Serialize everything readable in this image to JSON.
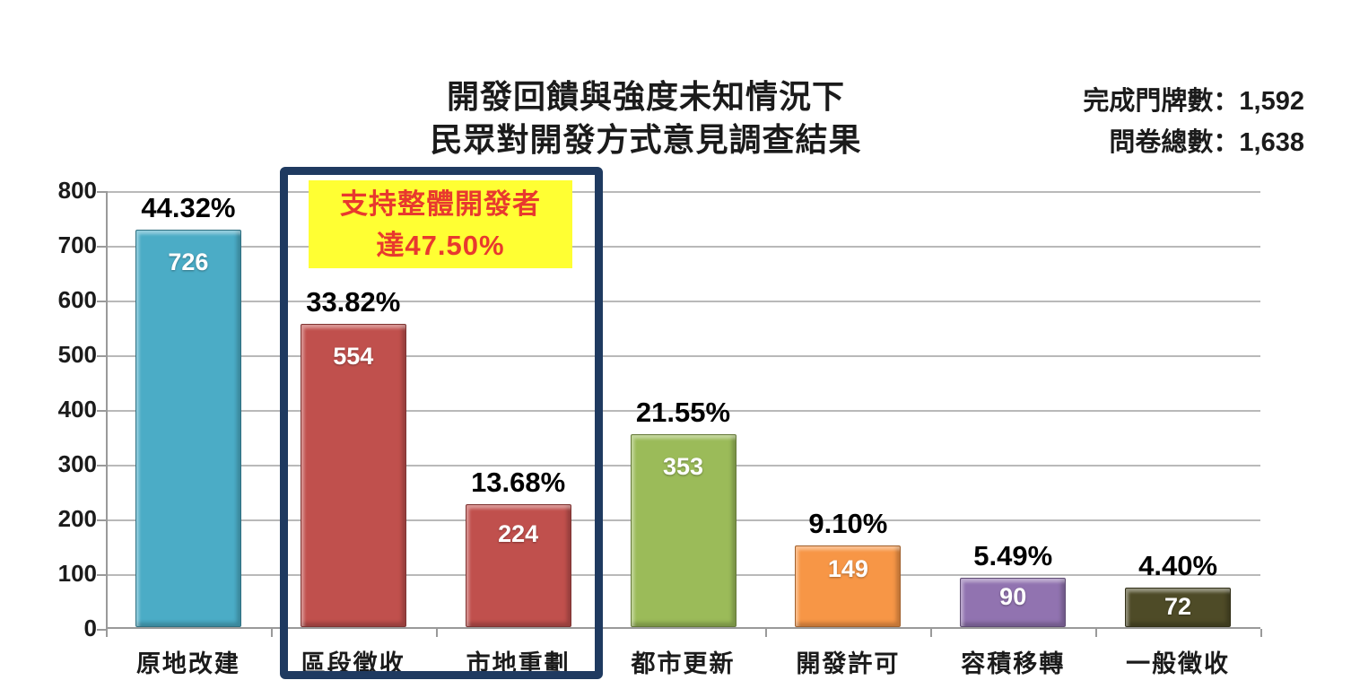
{
  "header": {
    "title_line1": "開發回饋與強度未知情況下",
    "title_line2": "民眾對開發方式意見調查結果",
    "stats_line1": "完成門牌數：1,592",
    "stats_line2": "問卷總數：1,638"
  },
  "chart_data": {
    "type": "bar",
    "title": "開發回饋與強度未知情況下 民眾對開發方式意見調查結果",
    "categories": [
      "原地改建",
      "區段徵收",
      "市地重劃",
      "都市更新",
      "開發許可",
      "容積移轉",
      "一般徵收"
    ],
    "values": [
      726,
      554,
      224,
      353,
      149,
      90,
      72
    ],
    "percent_labels": [
      "44.32%",
      "33.82%",
      "13.68%",
      "21.55%",
      "9.10%",
      "5.49%",
      "4.40%"
    ],
    "bar_colors": [
      "#4bacc6",
      "#c0504d",
      "#c0504d",
      "#9bbb59",
      "#f79646",
      "#9173b0",
      "#4e4b27"
    ],
    "xlabel": "",
    "ylabel": "",
    "ylim": [
      0,
      800
    ],
    "yticks": [
      0,
      100,
      200,
      300,
      400,
      500,
      600,
      700,
      800
    ],
    "grid": true,
    "legend": "none",
    "highlight": {
      "enclosed_categories": [
        "區段徵收",
        "市地重劃"
      ],
      "box_color": "#1f3a60",
      "annotation_line1": "支持整體開發者",
      "annotation_line2": "達47.50%",
      "annotation_bg": "#ffff33",
      "annotation_text_color": "#e8392e"
    }
  }
}
